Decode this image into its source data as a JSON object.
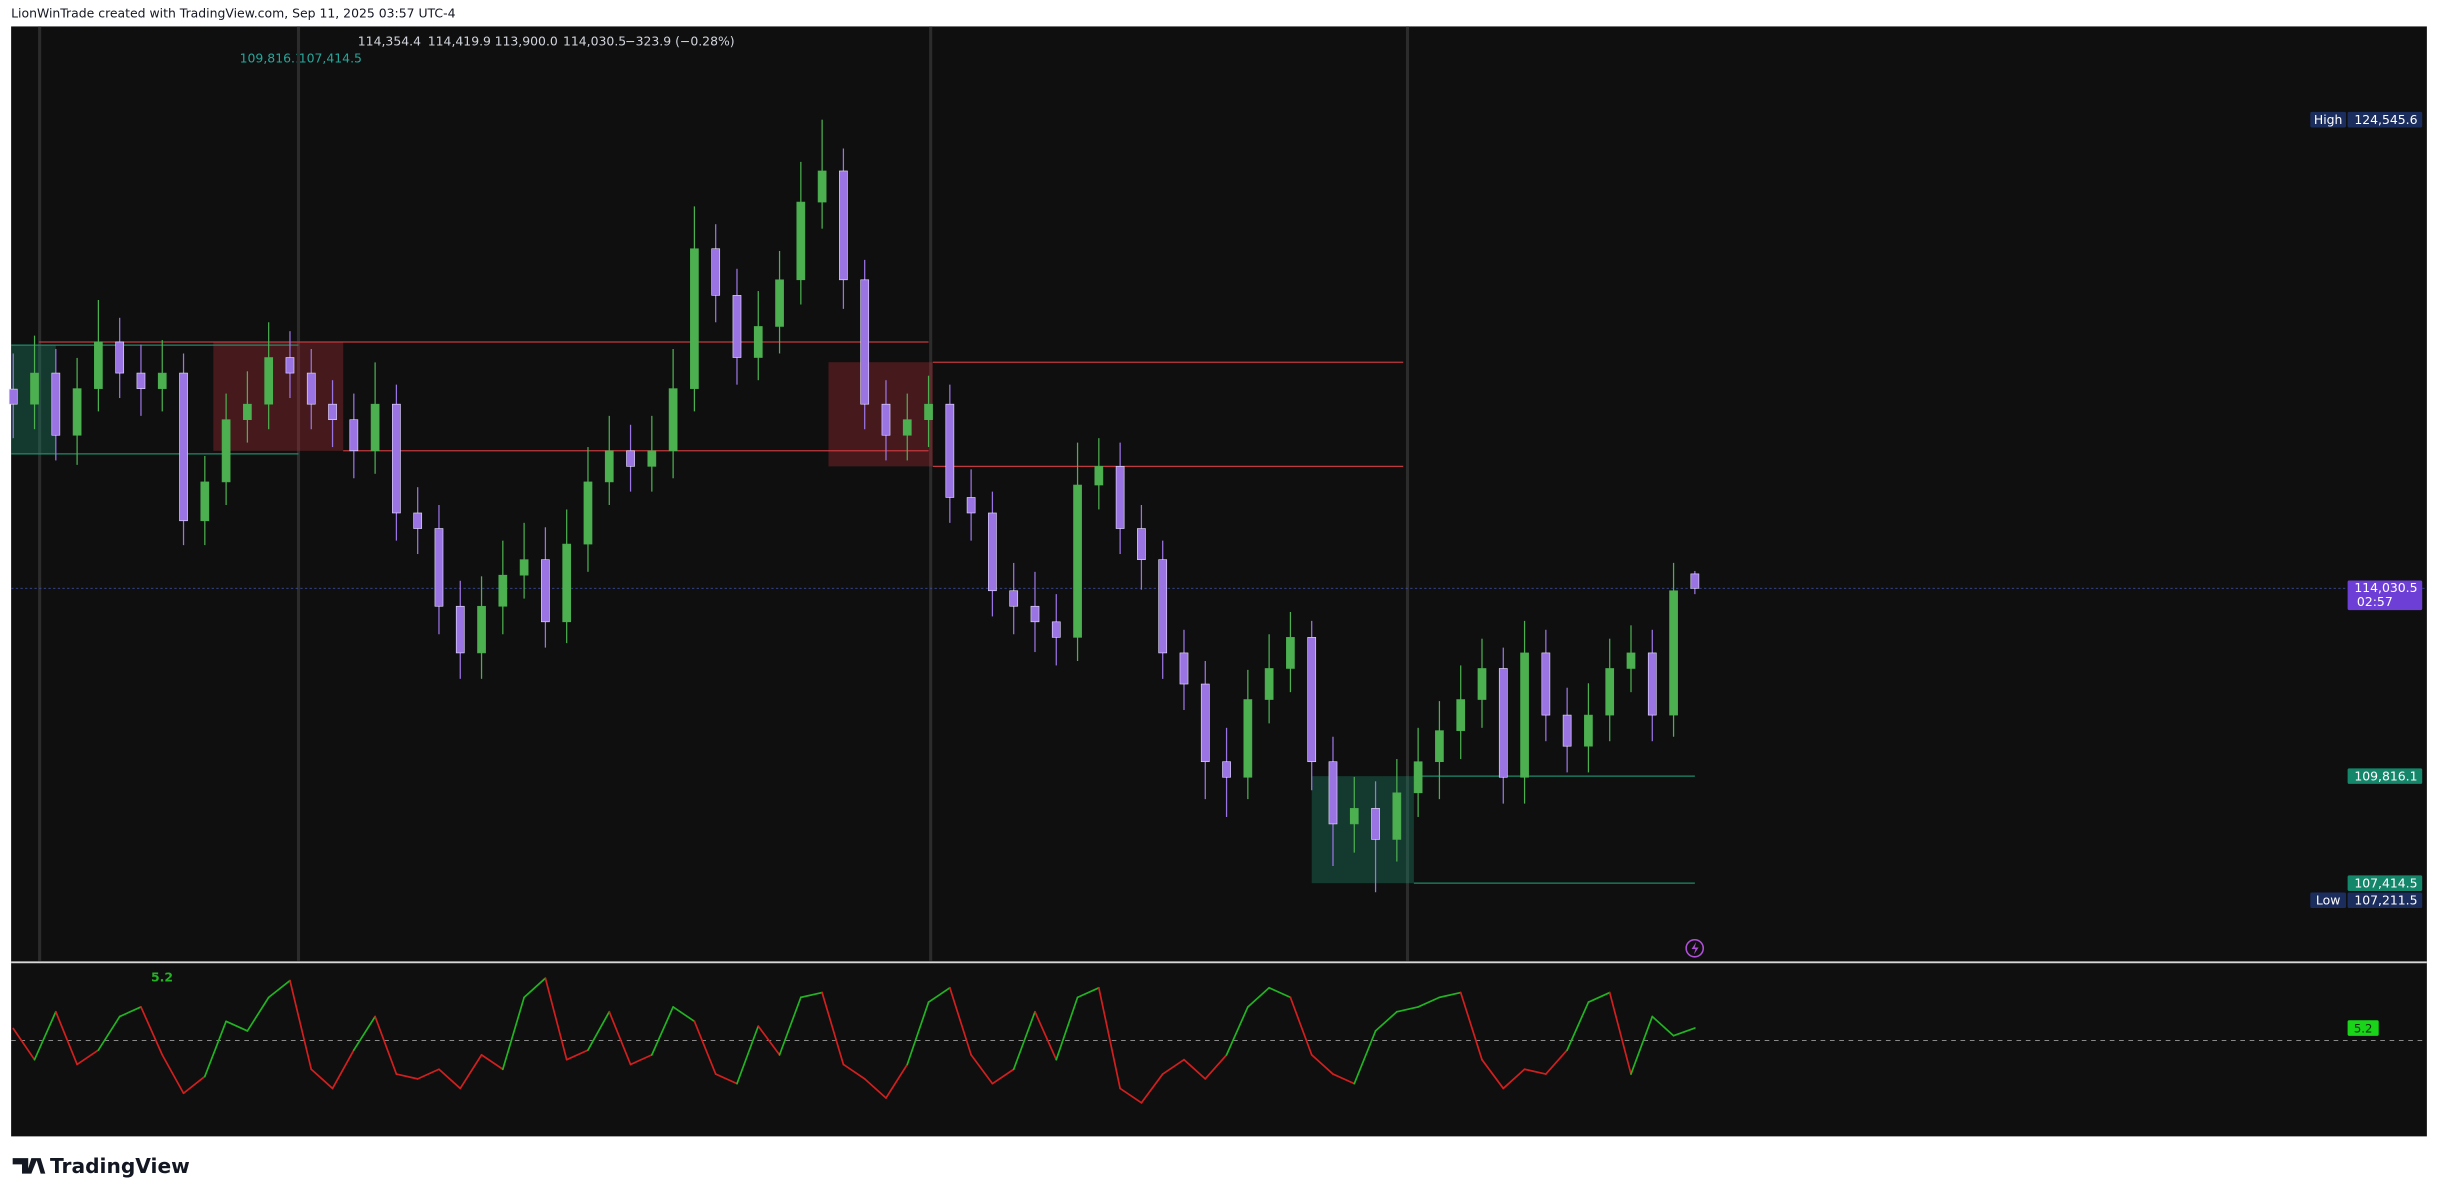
{
  "header": {
    "credit": "LionWinTrade created with TradingView.com, Sep 11, 2025 03:57 UTC-4",
    "ohlc": [
      "114,354.4",
      "114,419.9",
      "113,900.0",
      "114,030.5",
      "−323.9 (−0.28%)"
    ],
    "indicator_values": [
      "109,816.1",
      "107,414.5"
    ]
  },
  "footer": {
    "brand": "TradingView"
  },
  "chart_data": [
    {
      "type": "candlestick",
      "up_color": "#4caf50",
      "down_color": "#9b74e3",
      "xlim": [
        -0.1,
        109.3
      ],
      "ylim": [
        105675,
        126603
      ],
      "session_breaks": [
        1.24,
        13.4,
        43.1,
        65.5
      ],
      "open": [
        118500,
        118162,
        118860,
        117465,
        118511,
        119558,
        118860,
        118511,
        118860,
        115546,
        116418,
        117814,
        118162,
        119209,
        118860,
        118162,
        117814,
        117116,
        118162,
        115721,
        115372,
        113628,
        112581,
        113628,
        114325,
        114674,
        113279,
        115023,
        116418,
        117116,
        116767,
        117116,
        118511,
        121650,
        120604,
        119209,
        119906,
        120953,
        122697,
        123395,
        120953,
        118162,
        117465,
        117814,
        118162,
        116069,
        115721,
        113976,
        113628,
        113279,
        112930,
        116348,
        116767,
        115372,
        114674,
        112581,
        111883,
        110140,
        109791,
        111535,
        112232,
        112930,
        110140,
        108744,
        109093,
        108396,
        109442,
        110140,
        110837,
        111535,
        112232,
        109791,
        112581,
        111186,
        110488,
        111186,
        112232,
        112581,
        111186,
        114354.4
      ],
      "high": [
        119300,
        119700,
        119400,
        119200,
        120500,
        120100,
        119500,
        119600,
        119300,
        117000,
        118400,
        118900,
        120000,
        119800,
        119400,
        118700,
        118400,
        119100,
        118600,
        116300,
        115900,
        114200,
        114300,
        115100,
        115500,
        115400,
        115800,
        117200,
        117900,
        117700,
        117900,
        119400,
        122600,
        122200,
        121200,
        120700,
        121600,
        123600,
        124545.6,
        123900,
        121400,
        118700,
        118400,
        118800,
        118600,
        116700,
        116200,
        114600,
        114400,
        113900,
        117300,
        117400,
        117300,
        115900,
        115100,
        113100,
        112400,
        110900,
        112200,
        113000,
        113500,
        113300,
        110700,
        109800,
        109700,
        110200,
        110900,
        111500,
        112300,
        112900,
        112700,
        113300,
        113100,
        111800,
        111900,
        112900,
        113200,
        113100,
        114600,
        114419.9
      ],
      "low": [
        117400,
        117600,
        116900,
        116800,
        118000,
        118300,
        117900,
        118000,
        115000,
        115000,
        115900,
        117300,
        117600,
        118300,
        117600,
        117200,
        116500,
        116600,
        115100,
        114800,
        113000,
        112000,
        112000,
        113000,
        113800,
        112700,
        112800,
        114400,
        115900,
        116200,
        116200,
        116500,
        118000,
        120000,
        118600,
        118700,
        119300,
        120400,
        122100,
        120300,
        117600,
        116900,
        116900,
        117200,
        115500,
        115100,
        113400,
        113000,
        112600,
        112300,
        112400,
        115800,
        114800,
        114000,
        112000,
        111300,
        109300,
        108900,
        109300,
        111000,
        111700,
        109500,
        107800,
        108100,
        107211.5,
        107900,
        108900,
        109300,
        110200,
        110900,
        109200,
        109200,
        110600,
        109900,
        109900,
        110600,
        111700,
        110600,
        110700,
        113900
      ],
      "close": [
        118162,
        118860,
        117465,
        118511,
        119558,
        118860,
        118511,
        118860,
        115546,
        116418,
        117814,
        118162,
        119209,
        118860,
        118162,
        117814,
        117116,
        118162,
        115721,
        115372,
        113628,
        112581,
        113628,
        114325,
        114674,
        113279,
        115023,
        116418,
        117116,
        116767,
        117116,
        118511,
        121650,
        120604,
        119209,
        119906,
        120953,
        122697,
        123395,
        120953,
        118162,
        117465,
        117814,
        118162,
        116069,
        115721,
        113976,
        113628,
        113279,
        112930,
        116348,
        116767,
        115372,
        114674,
        112581,
        111883,
        110140,
        109791,
        111535,
        112232,
        112930,
        110140,
        108744,
        109093,
        108396,
        109442,
        110140,
        110837,
        111535,
        112232,
        109791,
        112581,
        111186,
        110488,
        111186,
        112232,
        112581,
        111186,
        113976,
        114030.5
      ],
      "zones": [
        {
          "from": 9.4,
          "to": 15.5,
          "top": 119558,
          "bottom": 117116,
          "color": "#b0303a"
        },
        {
          "from": 38.3,
          "to": 43.2,
          "top": 119104,
          "bottom": 116767,
          "color": "#b0303a"
        },
        {
          "from": -0.1,
          "to": 2,
          "top": 119488,
          "bottom": 117046,
          "color": "#1f8a6a"
        },
        {
          "from": 61,
          "to": 65.8,
          "top": 109816.1,
          "bottom": 107414.5,
          "color": "#1f8a6a"
        }
      ],
      "levels": [
        {
          "from": 1.2,
          "to": 43.0,
          "value": 119558,
          "color": "#c0393f"
        },
        {
          "from": 15.5,
          "to": 43.0,
          "value": 117116,
          "color": "#c0393f"
        },
        {
          "from": 43.2,
          "to": 65.3,
          "value": 119104,
          "color": "#c0393f"
        },
        {
          "from": 43.2,
          "to": 65.3,
          "value": 116767,
          "color": "#c0393f"
        },
        {
          "from": -0.1,
          "to": 13.4,
          "value": 119488,
          "color": "#1f8a6a"
        },
        {
          "from": -0.1,
          "to": 13.4,
          "value": 117046,
          "color": "#1f8a6a"
        },
        {
          "from": 65.8,
          "to": 79,
          "value": 109816.1,
          "color": "#1f8a6a"
        },
        {
          "from": 65.8,
          "to": 79,
          "value": 107414.5,
          "color": "#1f8a6a"
        }
      ],
      "price_markers": [
        {
          "value": 124545.6,
          "label": "124,545.6",
          "tag": "High",
          "color": "#1b2d5c"
        },
        {
          "value": 114030.5,
          "label": "114,030.5",
          "countdown": "02:57",
          "color": "#6d3fd6",
          "price_line": true
        },
        {
          "value": 109816.1,
          "label": "109,816.1",
          "color": "#14866a"
        },
        {
          "value": 107414.5,
          "label": "107,414.5",
          "color": "#14866a"
        },
        {
          "value": 107211.5,
          "label": "107,211.5",
          "tag": "Low",
          "color": "#1b2d5c"
        }
      ]
    },
    {
      "type": "oscillator",
      "pos_color": "#22b322",
      "neg_color": "#d11f1f",
      "tag_color": "#19d419",
      "xlim": [
        -0.1,
        109.3
      ],
      "ylim": [
        -40,
        32
      ],
      "yticks": [
        0
      ],
      "legend_value": "5.2",
      "last_value_label": "5.2",
      "values": [
        5,
        -8,
        12,
        -10,
        -4,
        10,
        14,
        -6,
        -22,
        -15,
        8,
        4,
        18,
        25,
        -12,
        -20,
        -4,
        10,
        -14,
        -16,
        -12,
        -20,
        -6,
        -12,
        18,
        26,
        -8,
        -4,
        12,
        -10,
        -6,
        14,
        8,
        -14,
        -18,
        6,
        -6,
        18,
        20,
        -10,
        -16,
        -24,
        -10,
        16,
        22,
        -6,
        -18,
        -12,
        12,
        -8,
        18,
        22,
        -20,
        -26,
        -14,
        -8,
        -16,
        -6,
        14,
        22,
        18,
        -6,
        -14,
        -18,
        4,
        12,
        14,
        18,
        20,
        -8,
        -20,
        -12,
        -14,
        -4,
        16,
        20,
        -14,
        10,
        2,
        5.2
      ]
    }
  ]
}
